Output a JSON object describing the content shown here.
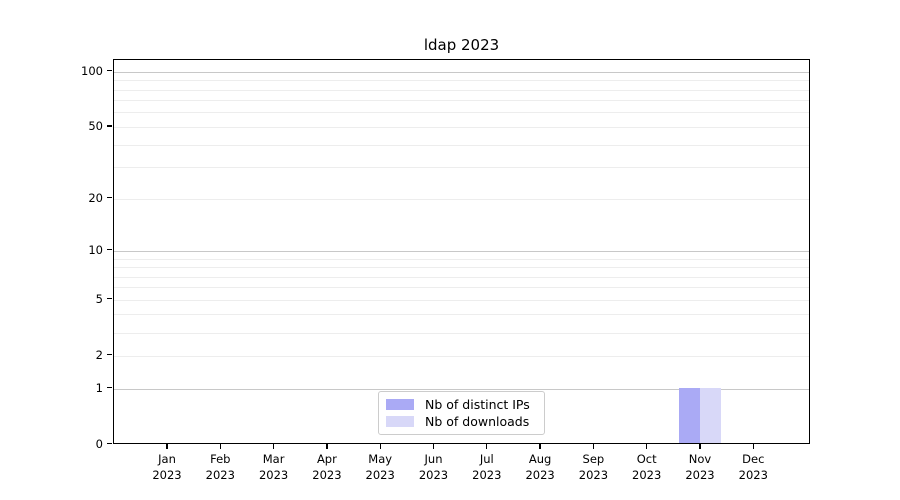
{
  "title": "ldap 2023",
  "colors": {
    "distinct_ips": "#aaaaf5",
    "downloads": "#d8d8f8",
    "grid_major": "#c8c8c8",
    "grid_minor": "#ededed",
    "spine": "#000000"
  },
  "legend": {
    "items": [
      {
        "label": "Nb of distinct IPs",
        "color": "#aaaaf5"
      },
      {
        "label": "Nb of downloads",
        "color": "#d8d8f8"
      }
    ]
  },
  "chart_data": {
    "type": "bar",
    "title": "ldap 2023",
    "categories": [
      "Jan 2023",
      "Feb 2023",
      "Mar 2023",
      "Apr 2023",
      "May 2023",
      "Jun 2023",
      "Jul 2023",
      "Aug 2023",
      "Sep 2023",
      "Oct 2023",
      "Nov 2023",
      "Dec 2023"
    ],
    "series": [
      {
        "name": "Nb of distinct IPs",
        "color": "#aaaaf5",
        "values": [
          0,
          0,
          0,
          0,
          0,
          0,
          0,
          0,
          0,
          0,
          1,
          0
        ]
      },
      {
        "name": "Nb of downloads",
        "color": "#d8d8f8",
        "values": [
          0,
          0,
          0,
          0,
          0,
          0,
          0,
          0,
          0,
          0,
          1,
          0
        ]
      }
    ],
    "xlabel": "",
    "ylabel": "",
    "yscale": "log1p",
    "ylim": [
      0,
      118
    ],
    "yticks": [
      0,
      1,
      2,
      5,
      10,
      20,
      50,
      100
    ],
    "yticks_grid_major": [
      1,
      10,
      100
    ],
    "yticks_minor": [
      3,
      4,
      6,
      7,
      8,
      9,
      30,
      40,
      60,
      70,
      80,
      90
    ],
    "grid": true,
    "legend_position": "lower center"
  }
}
